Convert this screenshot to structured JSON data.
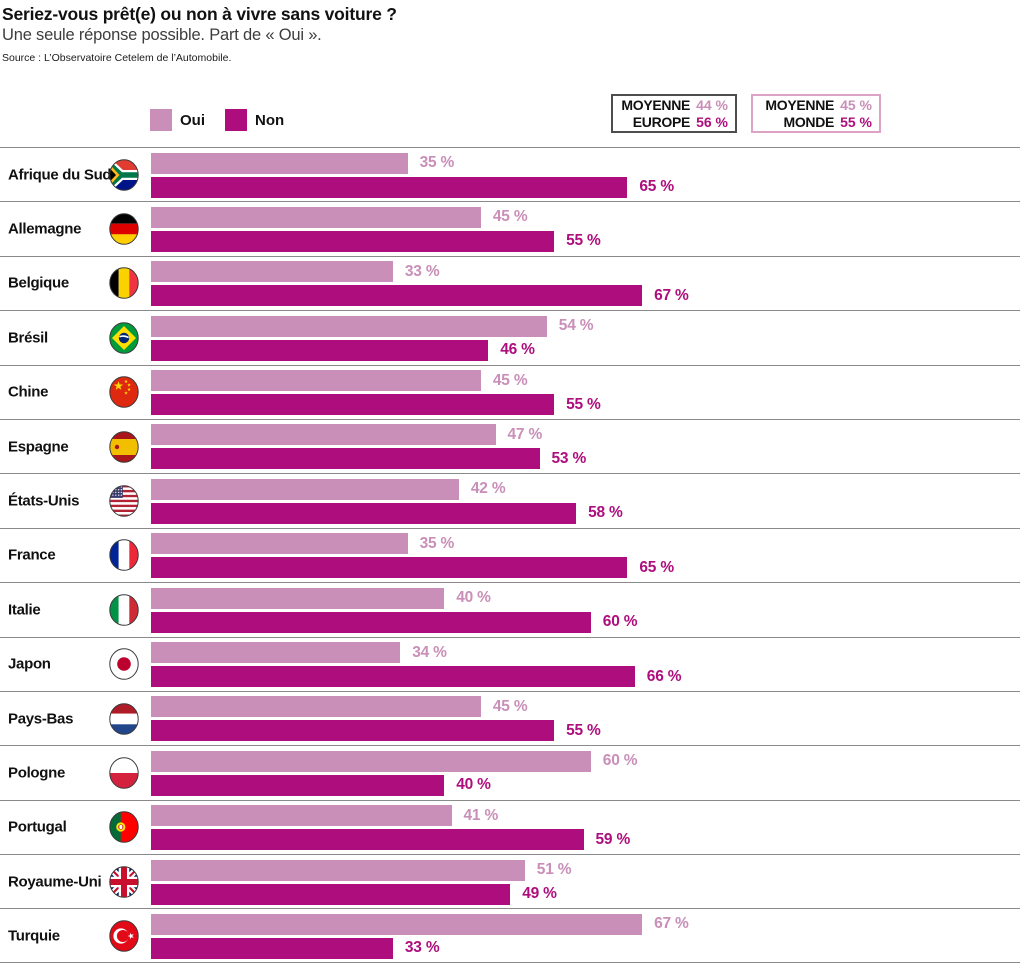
{
  "header": {
    "title": "Seriez-vous prêt(e) ou non à vivre sans voiture ?",
    "subtitle": "Une seule réponse possible. Part de « Oui ».",
    "source": "Source : L’Observatoire Cetelem de l’Automobile."
  },
  "legend": {
    "oui": "Oui",
    "non": "Non"
  },
  "averages": [
    {
      "line1": "MOYENNE",
      "line2": "EUROPE",
      "oui": "44 %",
      "non": "56 %"
    },
    {
      "line1": "MOYENNE",
      "line2": "MONDE",
      "oui": "45 %",
      "non": "55 %"
    }
  ],
  "colors": {
    "oui": "#C98FB8",
    "non": "#AE0E7D",
    "europe_box_border": "#4D4D4F",
    "monde_box_border": "#DCA3C6",
    "separator": "#8A8A8A"
  },
  "chart_data": {
    "type": "bar",
    "orientation": "horizontal",
    "title": "Seriez-vous prêt(e) ou non à vivre sans voiture ?",
    "subtitle": "Une seule réponse possible. Part de « Oui ».",
    "source": "Source : L’Observatoire Cetelem de l’Automobile.",
    "unit": "%",
    "xlim": [
      0,
      100
    ],
    "grid": false,
    "legend_position": "top-left",
    "categories": [
      "Afrique du Sud",
      "Allemagne",
      "Belgique",
      "Brésil",
      "Chine",
      "Espagne",
      "États-Unis",
      "France",
      "Italie",
      "Japon",
      "Pays-Bas",
      "Pologne",
      "Portugal",
      "Royaume-Uni",
      "Turquie"
    ],
    "series": [
      {
        "name": "Oui",
        "values": [
          35,
          45,
          33,
          54,
          45,
          47,
          42,
          35,
          40,
          34,
          45,
          60,
          41,
          51,
          67
        ]
      },
      {
        "name": "Non",
        "values": [
          65,
          55,
          67,
          46,
          55,
          53,
          58,
          65,
          60,
          66,
          55,
          40,
          59,
          49,
          33
        ]
      }
    ],
    "averages": {
      "europe": {
        "oui": 44,
        "non": 56
      },
      "monde": {
        "oui": 45,
        "non": 55
      }
    }
  },
  "rows": [
    {
      "country": "Afrique du Sud",
      "flag": "za",
      "oui": 35,
      "non": 65,
      "oui_label": "35 %",
      "non_label": "65 %"
    },
    {
      "country": "Allemagne",
      "flag": "de",
      "oui": 45,
      "non": 55,
      "oui_label": "45 %",
      "non_label": "55 %"
    },
    {
      "country": "Belgique",
      "flag": "be",
      "oui": 33,
      "non": 67,
      "oui_label": "33 %",
      "non_label": "67 %"
    },
    {
      "country": "Brésil",
      "flag": "br",
      "oui": 54,
      "non": 46,
      "oui_label": "54 %",
      "non_label": "46 %"
    },
    {
      "country": "Chine",
      "flag": "cn",
      "oui": 45,
      "non": 55,
      "oui_label": "45 %",
      "non_label": "55 %"
    },
    {
      "country": "Espagne",
      "flag": "es",
      "oui": 47,
      "non": 53,
      "oui_label": "47 %",
      "non_label": "53 %"
    },
    {
      "country": "États-Unis",
      "flag": "us",
      "oui": 42,
      "non": 58,
      "oui_label": "42 %",
      "non_label": "58 %"
    },
    {
      "country": "France",
      "flag": "fr",
      "oui": 35,
      "non": 65,
      "oui_label": "35 %",
      "non_label": "65 %"
    },
    {
      "country": "Italie",
      "flag": "it",
      "oui": 40,
      "non": 60,
      "oui_label": "40 %",
      "non_label": "60 %"
    },
    {
      "country": "Japon",
      "flag": "jp",
      "oui": 34,
      "non": 66,
      "oui_label": "34 %",
      "non_label": "66 %"
    },
    {
      "country": "Pays-Bas",
      "flag": "nl",
      "oui": 45,
      "non": 55,
      "oui_label": "45 %",
      "non_label": "55 %"
    },
    {
      "country": "Pologne",
      "flag": "pl",
      "oui": 60,
      "non": 40,
      "oui_label": "60 %",
      "non_label": "40 %"
    },
    {
      "country": "Portugal",
      "flag": "pt",
      "oui": 41,
      "non": 59,
      "oui_label": "41 %",
      "non_label": "59 %"
    },
    {
      "country": "Royaume-Uni",
      "flag": "gb",
      "oui": 51,
      "non": 49,
      "oui_label": "51 %",
      "non_label": "49 %"
    },
    {
      "country": "Turquie",
      "flag": "tr",
      "oui": 67,
      "non": 33,
      "oui_label": "67 %",
      "non_label": "33 %"
    }
  ]
}
